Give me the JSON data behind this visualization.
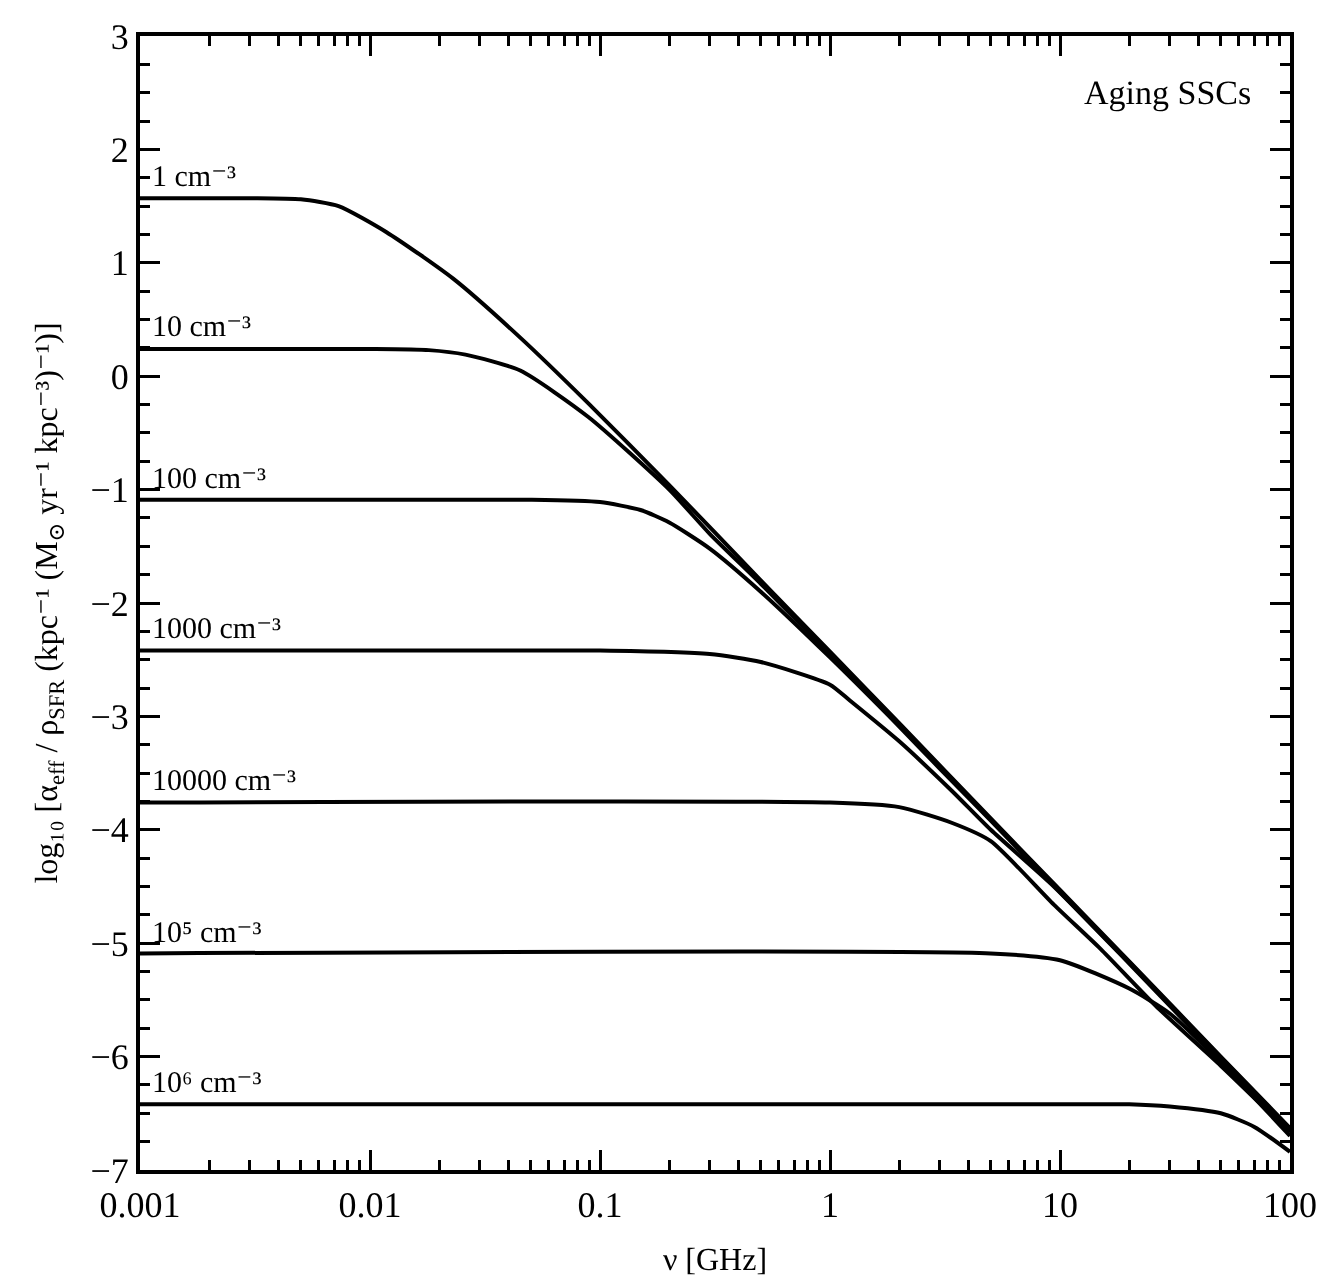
{
  "chart_data": {
    "type": "line",
    "xlabel": "ν [GHz]",
    "ylabel": "log₁₀ [α$_{eff}$ / ρ$_{SFR}$ (kpc⁻¹ (M$_{⊙}$ yr⁻¹ kpc⁻³)⁻¹)]",
    "annotations": [
      "Aging SSCs"
    ],
    "log": "x",
    "xlim": [
      0.001,
      100
    ],
    "xticks": [
      0.001,
      0.01,
      0.1,
      1,
      10,
      100
    ],
    "ylim": [
      -7,
      3
    ],
    "yticks": [
      -7,
      -6,
      -5,
      -4,
      -3,
      -2,
      -1,
      0,
      1,
      2,
      3
    ],
    "grid": false,
    "legend": false,
    "marker": "none",
    "line_style": "solid",
    "series": [
      {
        "name": "1 cm⁻³",
        "color": "#000000",
        "x": [
          0.001,
          0.003,
          0.005,
          0.0073,
          0.0118,
          0.023,
          0.045,
          0.089,
          0.2,
          0.5,
          1,
          2,
          5,
          10,
          20,
          50,
          100
        ],
        "values": [
          1.57,
          1.57,
          1.56,
          1.5,
          1.27,
          0.86,
          0.34,
          -0.24,
          -0.96,
          -1.8,
          -2.43,
          -3.06,
          -3.9,
          -4.53,
          -5.16,
          -6,
          -6.63
        ]
      },
      {
        "name": "10 cm⁻³",
        "color": "#000000",
        "x": [
          0.001,
          0.01,
          0.018,
          0.026,
          0.045,
          0.089,
          0.2,
          0.3,
          0.5,
          1,
          2,
          5,
          10,
          20,
          50,
          100
        ],
        "values": [
          0.24,
          0.24,
          0.23,
          0.19,
          0.05,
          -0.36,
          -1,
          -1.39,
          -1.83,
          -2.45,
          -3.07,
          -3.91,
          -4.54,
          -5.17,
          -6.01,
          -6.64
        ]
      },
      {
        "name": "100 cm⁻³",
        "color": "#000000",
        "x": [
          0.001,
          0.05,
          0.1,
          0.15,
          0.2,
          0.3,
          0.5,
          1,
          2,
          3,
          5,
          10,
          20,
          50,
          100
        ],
        "values": [
          -1.09,
          -1.09,
          -1.11,
          -1.18,
          -1.29,
          -1.52,
          -1.9,
          -2.48,
          -3.09,
          -3.46,
          -3.92,
          -4.55,
          -5.17,
          -6.01,
          -6.64
        ]
      },
      {
        "name": "1000 cm⁻³",
        "color": "#000000",
        "x": [
          0.001,
          0.1,
          0.3,
          0.5,
          1,
          1.22,
          2,
          3.4,
          5,
          9.4,
          20,
          50,
          100
        ],
        "values": [
          -2.42,
          -2.42,
          -2.45,
          -2.52,
          -2.72,
          -2.86,
          -3.22,
          -3.66,
          -4,
          -4.5,
          -5.18,
          -6.02,
          -6.65
        ]
      },
      {
        "name": "10000 cm⁻³",
        "color": "#000000",
        "x": [
          0.001,
          1,
          2,
          3.4,
          5,
          9.4,
          15,
          26,
          50,
          100
        ],
        "values": [
          -3.76,
          -3.76,
          -3.8,
          -3.94,
          -4.1,
          -4.66,
          -5.05,
          -5.55,
          -6.08,
          -6.67
        ]
      },
      {
        "name": "10⁵ cm⁻³",
        "color": "#000000",
        "x": [
          0.001,
          5,
          10,
          20,
          30,
          50,
          100
        ],
        "values": [
          -5.09,
          -5.09,
          -5.15,
          -5.4,
          -5.62,
          -6.05,
          -6.7
        ]
      },
      {
        "name": "10⁶ cm⁻³",
        "color": "#000000",
        "x": [
          0.001,
          20,
          30,
          50,
          70,
          100
        ],
        "values": [
          -6.42,
          -6.42,
          -6.44,
          -6.5,
          -6.62,
          -6.84
        ]
      }
    ]
  }
}
